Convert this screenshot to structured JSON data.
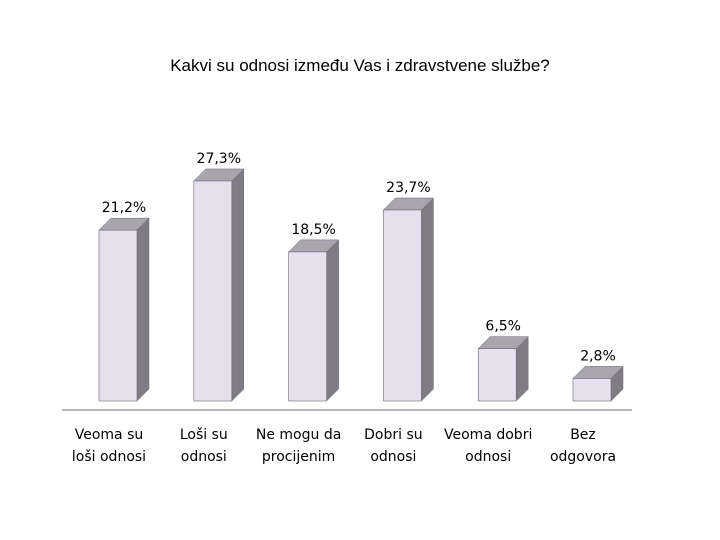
{
  "chart_data": {
    "type": "bar",
    "title": "Kakvi su odnosi između Vas i zdravstvene službe?",
    "categories": [
      [
        "Veoma su",
        "loši odnosi"
      ],
      [
        "Loši su",
        "odnosi"
      ],
      [
        "Ne mogu da",
        "procijenim"
      ],
      [
        "Dobri su",
        "odnosi"
      ],
      [
        "Veoma dobri",
        "odnosi"
      ],
      [
        "Bez",
        "odgovora"
      ]
    ],
    "values": [
      21.2,
      27.3,
      18.5,
      23.7,
      6.5,
      2.8
    ],
    "data_labels": [
      "21,2%",
      "27,3%",
      "18,5%",
      "23,7%",
      "6,5%",
      "2,8%"
    ],
    "ylim": [
      0,
      30
    ],
    "grid": false,
    "colors": {
      "bar_front": "#e6e0ee",
      "bar_side": "#807c84",
      "bar_top": "#a9a5ad",
      "bar_edge": "#6b6870",
      "axis": "#8c8c8c"
    }
  }
}
